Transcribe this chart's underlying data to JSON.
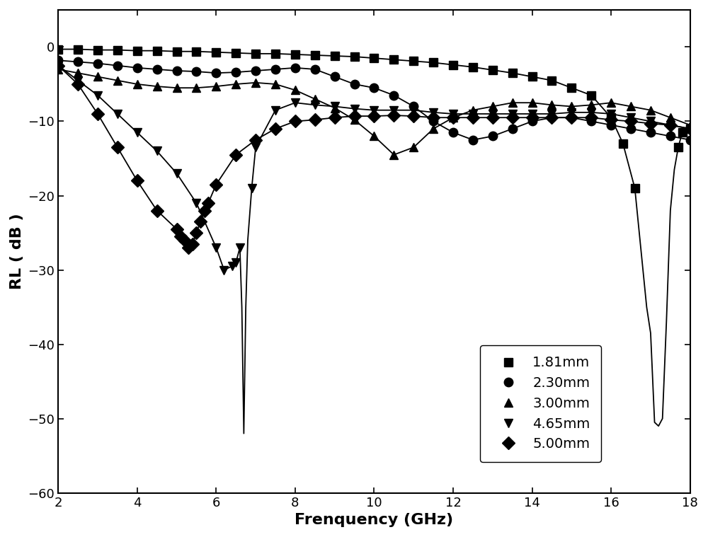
{
  "xlabel": "Frenquency (GHz)",
  "ylabel": "RL ( dB )",
  "xlim": [
    2,
    18
  ],
  "ylim": [
    -60,
    5
  ],
  "yticks": [
    0,
    -10,
    -20,
    -30,
    -40,
    -50,
    -60
  ],
  "xticks": [
    2,
    4,
    6,
    8,
    10,
    12,
    14,
    16,
    18
  ],
  "legend": [
    "1.81mm",
    "2.30mm",
    "3.00mm",
    "4.65mm",
    "5.00mm"
  ],
  "markers": [
    "s",
    "o",
    "^",
    "v",
    "D"
  ],
  "line_color": "#000000",
  "series": {
    "1.81mm": {
      "x": [
        2.0,
        2.5,
        3.0,
        3.5,
        4.0,
        4.5,
        5.0,
        5.5,
        6.0,
        6.5,
        7.0,
        7.5,
        8.0,
        8.5,
        9.0,
        9.5,
        10.0,
        10.5,
        11.0,
        11.5,
        12.0,
        12.5,
        13.0,
        13.5,
        14.0,
        14.5,
        15.0,
        15.5,
        16.0,
        16.3,
        16.6,
        16.9,
        17.0,
        17.1,
        17.2,
        17.3,
        17.4,
        17.5,
        17.6,
        17.7,
        17.8,
        18.0
      ],
      "y": [
        -0.3,
        -0.3,
        -0.4,
        -0.4,
        -0.5,
        -0.5,
        -0.6,
        -0.6,
        -0.7,
        -0.8,
        -0.9,
        -0.9,
        -1.0,
        -1.1,
        -1.2,
        -1.3,
        -1.5,
        -1.7,
        -1.9,
        -2.1,
        -2.4,
        -2.7,
        -3.1,
        -3.5,
        -4.0,
        -4.5,
        -5.5,
        -6.5,
        -9.5,
        -13.0,
        -19.0,
        -35.0,
        -38.5,
        -50.5,
        -51.0,
        -50.0,
        -37.0,
        -22.0,
        -16.5,
        -13.5,
        -11.5,
        -11.0
      ],
      "marker_x": [
        2.0,
        2.5,
        3.0,
        3.5,
        4.0,
        4.5,
        5.0,
        5.5,
        6.0,
        6.5,
        7.0,
        7.5,
        8.0,
        8.5,
        9.0,
        9.5,
        10.0,
        10.5,
        11.0,
        11.5,
        12.0,
        12.5,
        13.0,
        13.5,
        14.0,
        14.5,
        15.0,
        15.5,
        16.0,
        16.3,
        16.6,
        17.7,
        17.8,
        18.0
      ],
      "marker_y": [
        -0.3,
        -0.3,
        -0.4,
        -0.4,
        -0.5,
        -0.5,
        -0.6,
        -0.6,
        -0.7,
        -0.8,
        -0.9,
        -0.9,
        -1.0,
        -1.1,
        -1.2,
        -1.3,
        -1.5,
        -1.7,
        -1.9,
        -2.1,
        -2.4,
        -2.7,
        -3.1,
        -3.5,
        -4.0,
        -4.5,
        -5.5,
        -6.5,
        -9.5,
        -13.0,
        -19.0,
        -13.5,
        -11.5,
        -11.0
      ]
    },
    "2.30mm": {
      "x": [
        2.0,
        2.5,
        3.0,
        3.5,
        4.0,
        4.5,
        5.0,
        5.5,
        6.0,
        6.5,
        7.0,
        7.5,
        8.0,
        8.5,
        9.0,
        9.5,
        10.0,
        10.5,
        11.0,
        11.5,
        12.0,
        12.5,
        13.0,
        13.5,
        14.0,
        14.5,
        15.0,
        15.5,
        16.0,
        16.5,
        17.0,
        17.5,
        18.0
      ],
      "y": [
        -1.8,
        -2.0,
        -2.2,
        -2.5,
        -2.8,
        -3.0,
        -3.2,
        -3.3,
        -3.5,
        -3.4,
        -3.2,
        -3.0,
        -2.8,
        -3.0,
        -4.0,
        -5.0,
        -5.5,
        -6.5,
        -8.0,
        -10.0,
        -11.5,
        -12.5,
        -12.0,
        -11.0,
        -10.0,
        -9.5,
        -9.5,
        -10.0,
        -10.5,
        -11.0,
        -11.5,
        -12.0,
        -12.5
      ],
      "marker_x": [
        2.0,
        2.5,
        3.0,
        3.5,
        4.0,
        4.5,
        5.0,
        5.5,
        6.0,
        6.5,
        7.0,
        7.5,
        8.0,
        8.5,
        9.0,
        9.5,
        10.0,
        10.5,
        11.0,
        11.5,
        12.0,
        12.5,
        13.0,
        13.5,
        14.0,
        14.5,
        15.0,
        15.5,
        16.0,
        16.5,
        17.0,
        17.5,
        18.0
      ],
      "marker_y": [
        -1.8,
        -2.0,
        -2.2,
        -2.5,
        -2.8,
        -3.0,
        -3.2,
        -3.3,
        -3.5,
        -3.4,
        -3.2,
        -3.0,
        -2.8,
        -3.0,
        -4.0,
        -5.0,
        -5.5,
        -6.5,
        -8.0,
        -10.0,
        -11.5,
        -12.5,
        -12.0,
        -11.0,
        -10.0,
        -9.5,
        -9.5,
        -10.0,
        -10.5,
        -11.0,
        -11.5,
        -12.0,
        -12.5
      ]
    },
    "3.00mm": {
      "x": [
        2.0,
        2.5,
        3.0,
        3.5,
        4.0,
        4.5,
        5.0,
        5.5,
        6.0,
        6.5,
        7.0,
        7.5,
        8.0,
        8.5,
        9.0,
        9.5,
        10.0,
        10.5,
        11.0,
        11.5,
        12.0,
        12.5,
        13.0,
        13.5,
        14.0,
        14.5,
        15.0,
        15.5,
        16.0,
        16.5,
        17.0,
        17.5,
        18.0
      ],
      "y": [
        -3.0,
        -3.5,
        -4.0,
        -4.5,
        -5.0,
        -5.3,
        -5.5,
        -5.5,
        -5.3,
        -5.0,
        -4.8,
        -5.0,
        -5.8,
        -7.0,
        -8.2,
        -9.8,
        -12.0,
        -14.5,
        -13.5,
        -11.0,
        -9.5,
        -8.5,
        -8.0,
        -7.5,
        -7.5,
        -7.8,
        -8.0,
        -7.8,
        -7.5,
        -8.0,
        -8.5,
        -9.5,
        -10.5
      ],
      "marker_x": [
        2.0,
        2.5,
        3.0,
        3.5,
        4.0,
        4.5,
        5.0,
        5.5,
        6.0,
        6.5,
        7.0,
        7.5,
        8.0,
        8.5,
        9.0,
        9.5,
        10.0,
        10.5,
        11.0,
        11.5,
        12.0,
        12.5,
        13.0,
        13.5,
        14.0,
        14.5,
        15.0,
        15.5,
        16.0,
        16.5,
        17.0,
        17.5,
        18.0
      ],
      "marker_y": [
        -3.0,
        -3.5,
        -4.0,
        -4.5,
        -5.0,
        -5.3,
        -5.5,
        -5.5,
        -5.3,
        -5.0,
        -4.8,
        -5.0,
        -5.8,
        -7.0,
        -8.2,
        -9.8,
        -12.0,
        -14.5,
        -13.5,
        -11.0,
        -9.5,
        -8.5,
        -8.0,
        -7.5,
        -7.5,
        -7.8,
        -8.0,
        -7.8,
        -7.5,
        -8.0,
        -8.5,
        -9.5,
        -10.5
      ]
    },
    "4.65mm": {
      "x": [
        2.0,
        2.5,
        3.0,
        3.5,
        4.0,
        4.5,
        5.0,
        5.5,
        6.0,
        6.2,
        6.4,
        6.5,
        6.6,
        6.65,
        6.7,
        6.75,
        6.8,
        6.9,
        7.0,
        7.5,
        8.0,
        8.5,
        9.0,
        9.5,
        10.0,
        10.5,
        11.0,
        11.5,
        12.0,
        12.5,
        13.0,
        13.5,
        14.0,
        14.5,
        15.0,
        15.5,
        16.0,
        16.5,
        17.0,
        17.5,
        18.0
      ],
      "y": [
        -2.5,
        -4.5,
        -6.5,
        -9.0,
        -11.5,
        -14.0,
        -17.0,
        -21.0,
        -27.0,
        -30.0,
        -29.5,
        -29.0,
        -27.0,
        -35.0,
        -52.0,
        -35.0,
        -26.0,
        -19.0,
        -13.5,
        -8.5,
        -7.5,
        -7.8,
        -8.0,
        -8.3,
        -8.5,
        -8.5,
        -8.5,
        -8.8,
        -9.0,
        -9.0,
        -9.0,
        -9.0,
        -9.0,
        -9.0,
        -8.8,
        -8.8,
        -9.0,
        -9.5,
        -10.0,
        -10.5,
        -11.0
      ],
      "marker_x": [
        2.0,
        2.5,
        3.0,
        3.5,
        4.0,
        4.5,
        5.0,
        5.5,
        6.0,
        6.2,
        6.4,
        6.5,
        6.6,
        6.9,
        7.0,
        7.5,
        8.0,
        8.5,
        9.0,
        9.5,
        10.0,
        10.5,
        11.0,
        11.5,
        12.0,
        12.5,
        13.0,
        13.5,
        14.0,
        14.5,
        15.0,
        15.5,
        16.0,
        16.5,
        17.0,
        17.5,
        18.0
      ],
      "marker_y": [
        -2.5,
        -4.5,
        -6.5,
        -9.0,
        -11.5,
        -14.0,
        -17.0,
        -21.0,
        -27.0,
        -30.0,
        -29.5,
        -29.0,
        -27.0,
        -19.0,
        -13.5,
        -8.5,
        -7.5,
        -7.8,
        -8.0,
        -8.3,
        -8.5,
        -8.5,
        -8.5,
        -8.8,
        -9.0,
        -9.0,
        -9.0,
        -9.0,
        -9.0,
        -9.0,
        -8.8,
        -8.8,
        -9.0,
        -9.5,
        -10.0,
        -10.5,
        -11.0
      ]
    },
    "5.00mm": {
      "x": [
        2.0,
        2.5,
        3.0,
        3.5,
        4.0,
        4.5,
        5.0,
        5.1,
        5.2,
        5.3,
        5.4,
        5.5,
        5.6,
        5.7,
        5.8,
        6.0,
        6.5,
        7.0,
        7.5,
        8.0,
        8.5,
        9.0,
        9.5,
        10.0,
        10.5,
        11.0,
        11.5,
        12.0,
        12.5,
        13.0,
        13.5,
        14.0,
        14.5,
        15.0,
        15.5,
        16.0,
        16.5,
        17.0,
        17.5,
        18.0
      ],
      "y": [
        -2.5,
        -5.0,
        -9.0,
        -13.5,
        -18.0,
        -22.0,
        -24.5,
        -25.5,
        -26.0,
        -27.0,
        -26.5,
        -25.0,
        -23.5,
        -22.0,
        -21.0,
        -18.5,
        -14.5,
        -12.5,
        -11.0,
        -10.0,
        -9.8,
        -9.5,
        -9.3,
        -9.3,
        -9.2,
        -9.3,
        -9.5,
        -9.5,
        -9.5,
        -9.5,
        -9.5,
        -9.5,
        -9.5,
        -9.5,
        -9.5,
        -9.8,
        -10.0,
        -10.3,
        -10.5,
        -11.0
      ],
      "marker_x": [
        2.0,
        2.5,
        3.0,
        3.5,
        4.0,
        4.5,
        5.0,
        5.1,
        5.2,
        5.3,
        5.4,
        5.5,
        5.6,
        5.7,
        5.8,
        6.0,
        6.5,
        7.0,
        7.5,
        8.0,
        8.5,
        9.0,
        9.5,
        10.0,
        10.5,
        11.0,
        11.5,
        12.0,
        12.5,
        13.0,
        13.5,
        14.0,
        14.5,
        15.0,
        15.5,
        16.0,
        16.5,
        17.0,
        17.5,
        18.0
      ],
      "marker_y": [
        -2.5,
        -5.0,
        -9.0,
        -13.5,
        -18.0,
        -22.0,
        -24.5,
        -25.5,
        -26.0,
        -27.0,
        -26.5,
        -25.0,
        -23.5,
        -22.0,
        -21.0,
        -18.5,
        -14.5,
        -12.5,
        -11.0,
        -10.0,
        -9.8,
        -9.5,
        -9.3,
        -9.3,
        -9.2,
        -9.3,
        -9.5,
        -9.5,
        -9.5,
        -9.5,
        -9.5,
        -9.5,
        -9.5,
        -9.5,
        -9.5,
        -9.8,
        -10.0,
        -10.3,
        -10.5,
        -11.0
      ]
    }
  }
}
